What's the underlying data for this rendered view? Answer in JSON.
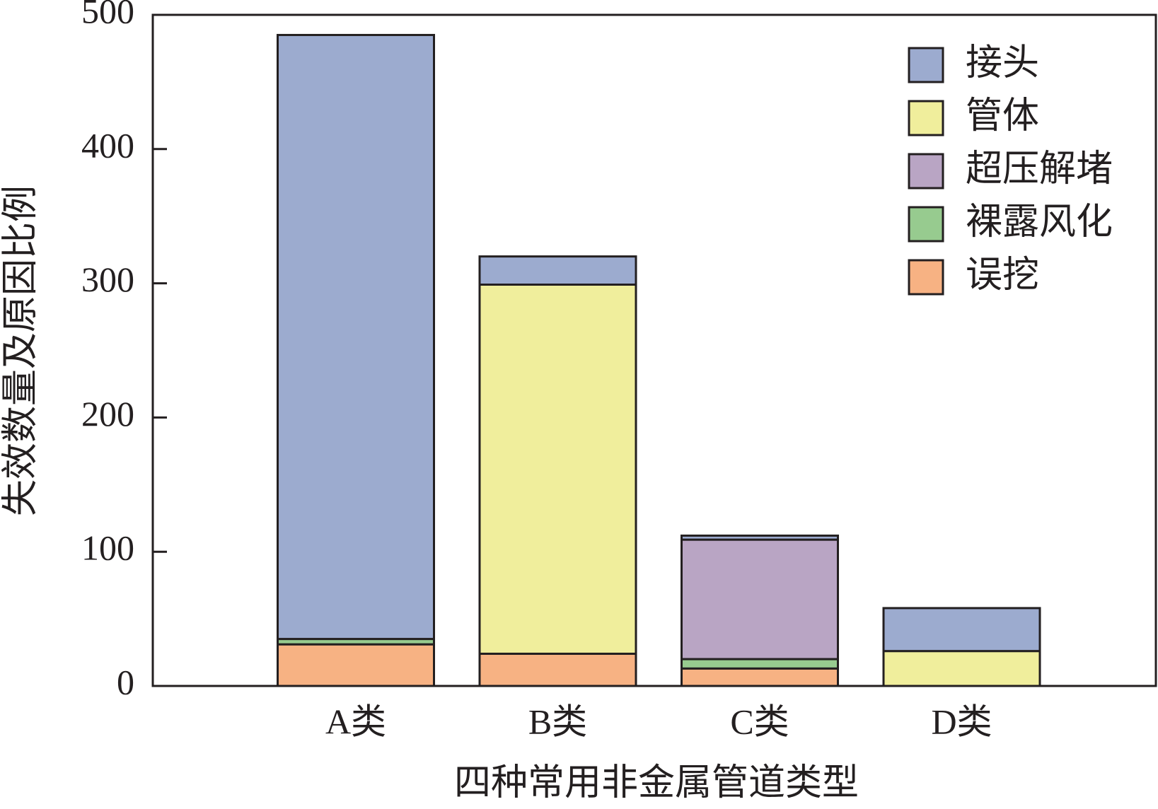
{
  "chart_data": {
    "type": "stacked_bar",
    "x_label": "四种常用非金属管道类型",
    "y_label": "失效数量及原因比例",
    "categories": [
      "A类",
      "B类",
      "C类",
      "D类"
    ],
    "series": [
      {
        "name": "接头",
        "color": "#9cabcf",
        "values": [
          450,
          21,
          3,
          32
        ]
      },
      {
        "name": "管体",
        "color": "#f0ee9c",
        "values": [
          0,
          275,
          0,
          26
        ]
      },
      {
        "name": "超压解堵",
        "color": "#b9a5c4",
        "values": [
          0,
          0,
          89,
          0
        ]
      },
      {
        "name": "裸露风化",
        "color": "#97cb8f",
        "values": [
          4,
          0,
          7,
          0
        ]
      },
      {
        "name": "误挖",
        "color": "#f7b283",
        "values": [
          31,
          24,
          13,
          0
        ]
      }
    ],
    "ylim": [
      0,
      500
    ],
    "yticks": [
      0,
      100,
      200,
      300,
      400,
      500
    ],
    "legend": "upper right"
  }
}
